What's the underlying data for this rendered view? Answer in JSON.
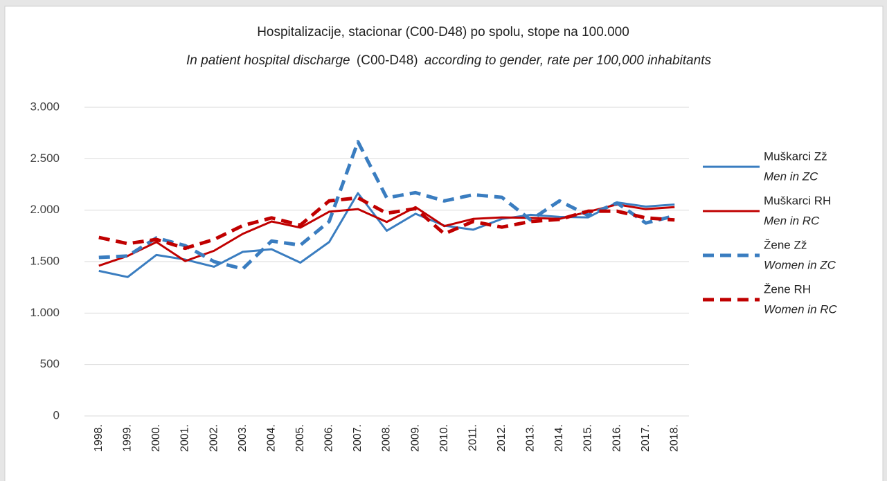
{
  "chart_data": {
    "type": "line",
    "title": "Hospitalizacije, stacionar (C00-D48) po spolu, stope na 100.000",
    "subtitle": [
      "In patient hospital discharge",
      "(C00-D48)",
      "according to gender, rate per 100,000 inhabitants"
    ],
    "categories": [
      "1998.",
      "1999.",
      "2000.",
      "2001.",
      "2002.",
      "2003.",
      "2004.",
      "2005.",
      "2006.",
      "2007.",
      "2008.",
      "2009.",
      "2010.",
      "2011.",
      "2012.",
      "2013.",
      "2014.",
      "2015.",
      "2016.",
      "2017.",
      "2018."
    ],
    "series": [
      {
        "name": "Muškarci Zž",
        "name_en": "Men in ZC",
        "color": "#3a7dc0",
        "dashed": false,
        "values": [
          1410,
          1350,
          1565,
          1520,
          1450,
          1595,
          1620,
          1490,
          1690,
          2165,
          1800,
          1965,
          1850,
          1810,
          1915,
          1955,
          1935,
          1930,
          2075,
          2035,
          2055
        ]
      },
      {
        "name": "Muškarci RH",
        "name_en": "Men in RC",
        "color": "#c00000",
        "dashed": false,
        "values": [
          1460,
          1555,
          1690,
          1505,
          1605,
          1770,
          1890,
          1830,
          1985,
          2010,
          1885,
          2030,
          1845,
          1915,
          1930,
          1925,
          1915,
          1985,
          2055,
          2010,
          2030
        ]
      },
      {
        "name": "Žene Zž",
        "name_en": "Women in ZC",
        "color": "#3a7dc0",
        "dashed": true,
        "values": [
          1540,
          1555,
          1730,
          1655,
          1500,
          1430,
          1700,
          1660,
          1890,
          2665,
          2120,
          2170,
          2090,
          2150,
          2125,
          1905,
          2090,
          1950,
          2070,
          1875,
          1945
        ]
      },
      {
        "name": "Žene RH",
        "name_en": "Women in RC",
        "color": "#c00000",
        "dashed": true,
        "values": [
          1735,
          1675,
          1715,
          1630,
          1715,
          1850,
          1925,
          1855,
          2090,
          2120,
          1970,
          2015,
          1770,
          1890,
          1835,
          1890,
          1910,
          1990,
          1990,
          1925,
          1905
        ]
      }
    ],
    "ylim": [
      0,
      3000
    ],
    "yticks": [
      0,
      500,
      {
        "value": 1000,
        "label": "1.000"
      },
      {
        "value": 1500,
        "label": "1.500"
      },
      {
        "value": 2000,
        "label": "2.000"
      },
      {
        "value": 2500,
        "label": "2.500"
      },
      {
        "value": 3000,
        "label": "3.000"
      }
    ],
    "grid": true,
    "legend": "right"
  }
}
